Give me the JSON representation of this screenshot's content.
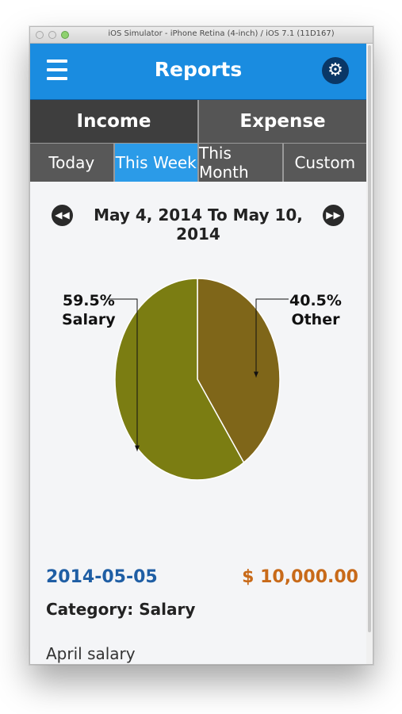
{
  "window": {
    "title": "iOS Simulator - iPhone Retina (4-inch) / iOS 7.1 (11D167)"
  },
  "navbar": {
    "title": "Reports",
    "menu_icon": "hamburger-menu-icon",
    "settings_icon": "gear-icon",
    "color": "#1a8ce0"
  },
  "type_tabs": [
    {
      "label": "Income",
      "selected": true
    },
    {
      "label": "Expense",
      "selected": false
    }
  ],
  "period_tabs": [
    {
      "label": "Today",
      "selected": false
    },
    {
      "label": "This Week",
      "selected": true
    },
    {
      "label": "This Month",
      "selected": false
    },
    {
      "label": "Custom",
      "selected": false
    }
  ],
  "date_range": {
    "text": "May 4, 2014 To May 10, 2014",
    "prev_icon": "rewind-icon",
    "next_icon": "fast-forward-icon"
  },
  "chart_data": {
    "type": "pie",
    "slices": [
      {
        "label": "Salary",
        "percent": 59.5,
        "percent_label": "59.5%",
        "color": "#7b7d12"
      },
      {
        "label": "Other",
        "percent": 40.5,
        "percent_label": "40.5%",
        "color": "#7f6619"
      }
    ]
  },
  "entry": {
    "date": "2014-05-05",
    "amount": "$ 10,000.00",
    "category": "Category: Salary",
    "note": "April salary"
  }
}
